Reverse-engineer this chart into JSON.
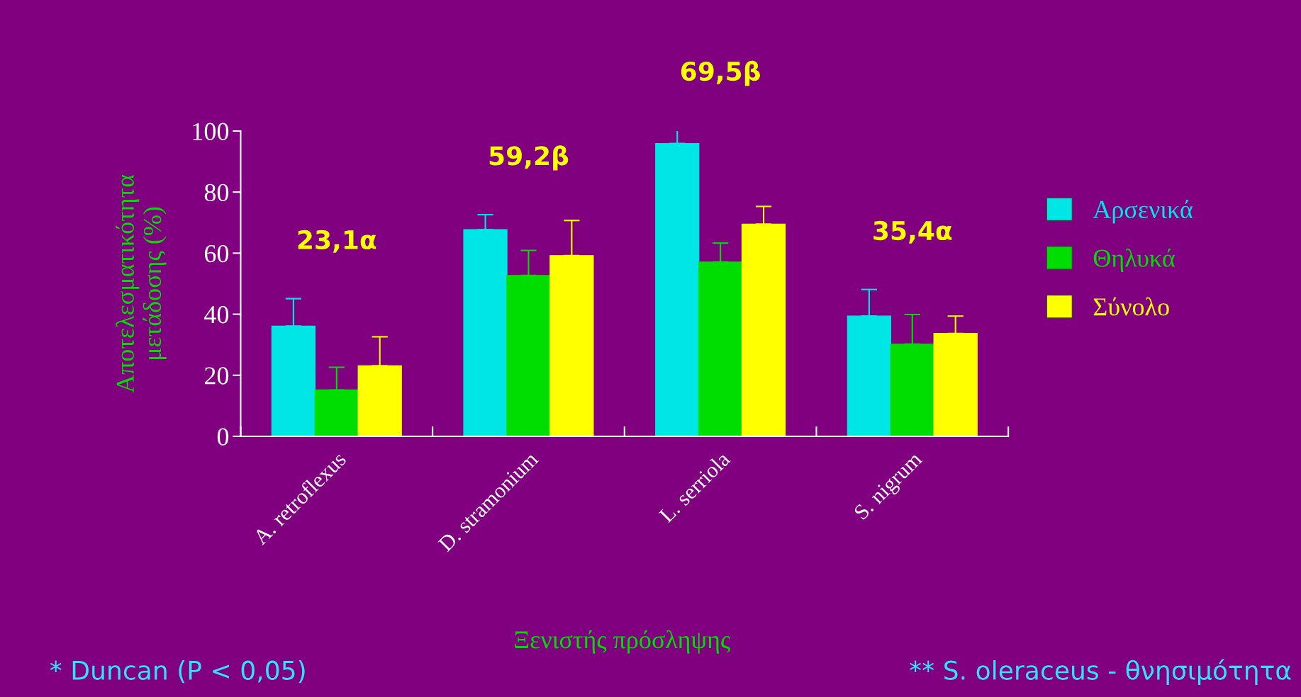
{
  "chart_data": {
    "type": "bar",
    "xlabel": "Ξενιστής πρόσληψης",
    "ylabel": "Αποτελεσματικότητα\nμετάδοσης (%)",
    "categories": [
      "A. retroflexus",
      "D. stramonium",
      "L. serriola",
      "S. nigrum"
    ],
    "series": [
      {
        "name": "Αρσενικά",
        "color": "#00e6e6",
        "values": [
          36.1,
          67.7,
          95.9,
          39.4
        ],
        "errors": [
          [
            36.1,
            45.1
          ],
          [
            67.7,
            72.6
          ],
          [
            95.9,
            100.3
          ],
          [
            39.4,
            48.1
          ]
        ]
      },
      {
        "name": "Θηλυκά",
        "color": "#00dd00",
        "values": [
          15.2,
          52.7,
          57.1,
          30.2
        ],
        "errors": [
          [
            15.2,
            22.6
          ],
          [
            52.7,
            60.9
          ],
          [
            57.1,
            63.3
          ],
          [
            30.2,
            39.9
          ]
        ]
      },
      {
        "name": "Σύνολο",
        "color": "#ffff00",
        "values": [
          23.1,
          59.2,
          69.5,
          33.7
        ],
        "errors": [
          [
            23.1,
            32.6
          ],
          [
            59.2,
            70.7
          ],
          [
            69.5,
            75.3
          ],
          [
            33.7,
            39.4
          ]
        ]
      }
    ],
    "ylim": [
      0,
      100
    ],
    "yticks": [
      0,
      20,
      40,
      60,
      80,
      100
    ],
    "grid": false,
    "legend": "right",
    "annotations": [
      "23,1α",
      "59,2β",
      "69,5β",
      "35,4α",
      "* Duncan (P < 0,05)",
      "** S. oleraceus - θνησιμότητα"
    ]
  }
}
